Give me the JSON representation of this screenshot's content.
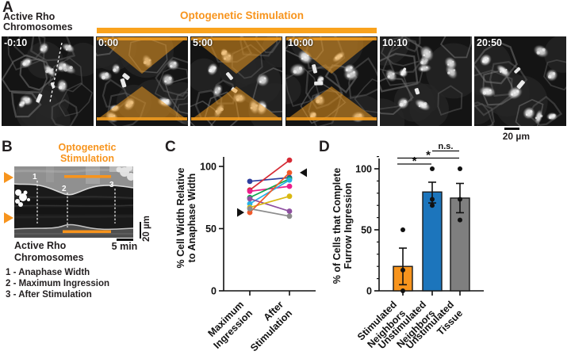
{
  "panelA": {
    "label": "A",
    "stain_label_lines": [
      "Active Rho",
      "Chromosomes"
    ],
    "stim_header": "Optogenetic Stimulation",
    "frames": [
      {
        "time": "-0:10",
        "stimulated": false,
        "annotation_line": true
      },
      {
        "time": "0:00",
        "stimulated": true,
        "annotation_line": false
      },
      {
        "time": "5:00",
        "stimulated": true,
        "annotation_line": false
      },
      {
        "time": "10:00",
        "stimulated": true,
        "annotation_line": false
      },
      {
        "time": "10:10",
        "stimulated": false,
        "annotation_line": false
      },
      {
        "time": "20:50",
        "stimulated": false,
        "annotation_line": false
      }
    ],
    "scale_bar_label": "20 µm"
  },
  "panelB": {
    "label": "B",
    "stim_header_lines": [
      "Optogenetic",
      "Stimulation"
    ],
    "kymo_marks": [
      "1",
      "2",
      "3"
    ],
    "stain_label_lines": [
      "Active Rho",
      "Chromosomes"
    ],
    "time_scale_label": "5 min",
    "space_scale_label": "20 µm",
    "legend": [
      "1 - Anaphase Width",
      "2 - Maximum Ingression",
      "3 - After Stimulation"
    ]
  },
  "panelC": {
    "label": "C"
  },
  "panelD": {
    "label": "D"
  },
  "colors": {
    "stim_orange": "#F7941D",
    "label_orange_red": "#F15A29",
    "bar_blue": "#1C75BC",
    "bar_gray": "#7F7F7F"
  },
  "chart_data": [
    {
      "id": "panelC",
      "type": "paired-line",
      "title": "",
      "ylabel": "% Cell Width Relative to Anaphase Width",
      "ylabel_lines": [
        "% Cell Width Relative",
        "to Anaphase Width"
      ],
      "categories": [
        "Maximum Ingression",
        "After Stimulation"
      ],
      "category_lines": [
        [
          "Maximum",
          "Ingression"
        ],
        [
          "After",
          "Stimulation"
        ]
      ],
      "ylim": [
        0,
        110
      ],
      "yticks": [
        0,
        50,
        100
      ],
      "grid": false,
      "series": [
        {
          "color": "#2E3F9F",
          "values": [
            88,
            91
          ]
        },
        {
          "color": "#D62A35",
          "values": [
            81,
            105
          ]
        },
        {
          "color": "#EC1E8C",
          "values": [
            80,
            84
          ]
        },
        {
          "color": "#10A74F",
          "values": [
            75,
            90
          ]
        },
        {
          "color": "#25B0E6",
          "values": [
            70,
            89
          ]
        },
        {
          "color": "#8E4FA0",
          "values": [
            74,
            64
          ]
        },
        {
          "color": "#D9B811",
          "values": [
            67,
            76
          ]
        },
        {
          "color": "#F1592A",
          "values": [
            63,
            95
          ]
        },
        {
          "color": "#8C8C8C",
          "values": [
            66,
            60
          ]
        }
      ],
      "annotations": [
        {
          "type": "arrow-right",
          "at_category": 0,
          "value": 63
        },
        {
          "type": "arrow-left",
          "at_category": 1,
          "value": 95
        }
      ]
    },
    {
      "id": "panelD",
      "type": "bar",
      "title": "",
      "ylabel": "% of Cells that Complete Furrow Ingression",
      "ylabel_lines": [
        "% of Cells that Complete",
        "Furrow Ingression"
      ],
      "categories": [
        "Stimulated Neighbors",
        "Unstimulated Neighbors",
        "Unstimulated Tissue"
      ],
      "category_lines": [
        [
          "Stimulated",
          "Neighbors"
        ],
        [
          "Unstimulated",
          "Neighbors"
        ],
        [
          "Unstimulated",
          "Tissue"
        ]
      ],
      "category_colors": [
        "#F15A29",
        "#1C75BC",
        "#231F20"
      ],
      "bar_colors": [
        "#F7941D",
        "#1C75BC",
        "#7F7F7F"
      ],
      "values": [
        20,
        81,
        76
      ],
      "error_low": [
        5,
        72,
        64
      ],
      "error_high": [
        35,
        89,
        88
      ],
      "points": [
        [
          50,
          17,
          0
        ],
        [
          100,
          75,
          70
        ],
        [
          100,
          75,
          58
        ]
      ],
      "ylim": [
        0,
        112
      ],
      "yticks": [
        0,
        50,
        100
      ],
      "minor_tick_step": 10,
      "grid": false,
      "significance": [
        {
          "from": 0,
          "to": 1,
          "label": "*"
        },
        {
          "from": 0,
          "to": 2,
          "label": "*"
        },
        {
          "from": 1,
          "to": 2,
          "label": "n.s."
        }
      ]
    }
  ]
}
